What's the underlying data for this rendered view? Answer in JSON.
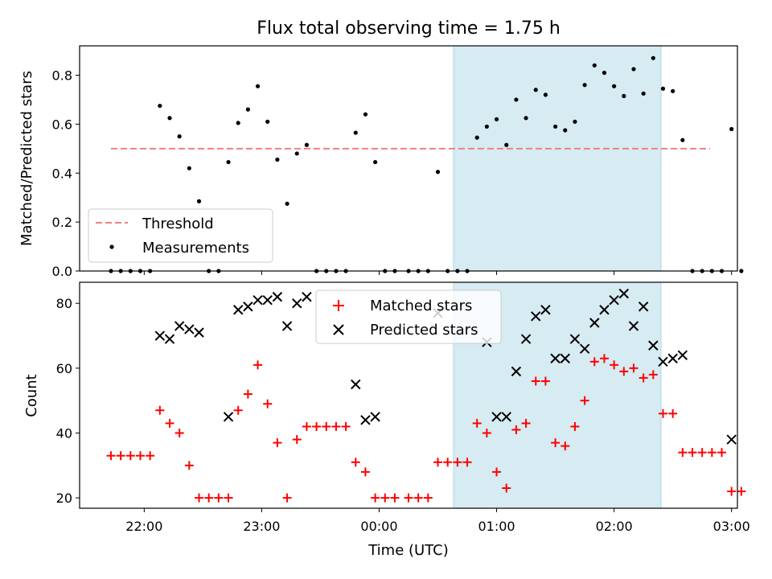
{
  "chart_data": [
    {
      "type": "scatter",
      "title": "Flux total observing time = 1.75 h",
      "ylabel": "Matched/Predicted stars",
      "xlabel": "",
      "x_unit": "UTC time (HH:MM)",
      "xlim": [
        "21:27",
        "03:03"
      ],
      "ylim": [
        0,
        0.92
      ],
      "yticks": [
        0.0,
        0.2,
        0.4,
        0.6,
        0.8
      ],
      "yticklabels": [
        "0.0",
        "0.2",
        "0.4",
        "0.6",
        "0.8"
      ],
      "shaded_interval": [
        "00:38",
        "02:24"
      ],
      "legend_position": "lower-left",
      "series": [
        {
          "name": "Threshold",
          "style": "dashed-line",
          "color": "#f08080",
          "points": [
            [
              "21:43",
              0.5
            ],
            [
              "02:49",
              0.5
            ]
          ]
        },
        {
          "name": "Measurements",
          "style": "dot",
          "color": "#000000",
          "points": [
            [
              "21:43",
              0
            ],
            [
              "21:48",
              0
            ],
            [
              "21:53",
              0
            ],
            [
              "21:58",
              0
            ],
            [
              "22:03",
              0
            ],
            [
              "22:08",
              0.675
            ],
            [
              "22:13",
              0.625
            ],
            [
              "22:18",
              0.55
            ],
            [
              "22:23",
              0.42
            ],
            [
              "22:28",
              0.285
            ],
            [
              "22:33",
              0
            ],
            [
              "22:38",
              0
            ],
            [
              "22:43",
              0.445
            ],
            [
              "22:48",
              0.605
            ],
            [
              "22:53",
              0.66
            ],
            [
              "22:58",
              0.755
            ],
            [
              "23:03",
              0.61
            ],
            [
              "23:08",
              0.455
            ],
            [
              "23:13",
              0.275
            ],
            [
              "23:18",
              0.48
            ],
            [
              "23:23",
              0.515
            ],
            [
              "23:28",
              0
            ],
            [
              "23:33",
              0
            ],
            [
              "23:38",
              0
            ],
            [
              "23:43",
              0
            ],
            [
              "23:48",
              0.565
            ],
            [
              "23:53",
              0.64
            ],
            [
              "23:58",
              0.445
            ],
            [
              "00:03",
              0
            ],
            [
              "00:08",
              0
            ],
            [
              "00:15",
              0
            ],
            [
              "00:20",
              0
            ],
            [
              "00:25",
              0
            ],
            [
              "00:30",
              0.405
            ],
            [
              "00:35",
              0
            ],
            [
              "00:40",
              0
            ],
            [
              "00:45",
              0
            ],
            [
              "00:50",
              0.545
            ],
            [
              "00:55",
              0.59
            ],
            [
              "01:00",
              0.62
            ],
            [
              "01:05",
              0.515
            ],
            [
              "01:10",
              0.7
            ],
            [
              "01:15",
              0.625
            ],
            [
              "01:20",
              0.74
            ],
            [
              "01:25",
              0.72
            ],
            [
              "01:30",
              0.59
            ],
            [
              "01:35",
              0.575
            ],
            [
              "01:40",
              0.61
            ],
            [
              "01:45",
              0.76
            ],
            [
              "01:50",
              0.84
            ],
            [
              "01:55",
              0.81
            ],
            [
              "02:00",
              0.755
            ],
            [
              "02:05",
              0.715
            ],
            [
              "02:10",
              0.825
            ],
            [
              "02:15",
              0.725
            ],
            [
              "02:20",
              0.87
            ],
            [
              "02:25",
              0.745
            ],
            [
              "02:30",
              0.735
            ],
            [
              "02:35",
              0.535
            ],
            [
              "02:40",
              0
            ],
            [
              "02:45",
              0
            ],
            [
              "02:50",
              0
            ],
            [
              "02:55",
              0
            ],
            [
              "03:00",
              0.58
            ],
            [
              "03:05",
              0
            ]
          ]
        }
      ]
    },
    {
      "type": "scatter",
      "title": "",
      "ylabel": "Count",
      "xlabel": "Time (UTC)",
      "xlim": [
        "21:27",
        "03:03"
      ],
      "ylim": [
        16.8,
        86.5
      ],
      "yticks": [
        20,
        40,
        60,
        80
      ],
      "yticklabels": [
        "20",
        "40",
        "60",
        "80"
      ],
      "xticks": [
        "22:00",
        "23:00",
        "00:00",
        "01:00",
        "02:00",
        "03:00"
      ],
      "shaded_interval": [
        "00:38",
        "02:24"
      ],
      "legend_position": "upper-center",
      "series": [
        {
          "name": "Matched stars",
          "marker": "plus",
          "color": "#ff0000",
          "points": [
            [
              "21:43",
              33
            ],
            [
              "21:48",
              33
            ],
            [
              "21:53",
              33
            ],
            [
              "21:58",
              33
            ],
            [
              "22:03",
              33
            ],
            [
              "22:08",
              47
            ],
            [
              "22:13",
              43
            ],
            [
              "22:18",
              40
            ],
            [
              "22:23",
              30
            ],
            [
              "22:28",
              20
            ],
            [
              "22:33",
              20
            ],
            [
              "22:38",
              20
            ],
            [
              "22:43",
              20
            ],
            [
              "22:48",
              47
            ],
            [
              "22:53",
              52
            ],
            [
              "22:58",
              61
            ],
            [
              "23:03",
              49
            ],
            [
              "23:08",
              37
            ],
            [
              "23:13",
              20
            ],
            [
              "23:18",
              38
            ],
            [
              "23:23",
              42
            ],
            [
              "23:28",
              42
            ],
            [
              "23:33",
              42
            ],
            [
              "23:38",
              42
            ],
            [
              "23:43",
              42
            ],
            [
              "23:48",
              31
            ],
            [
              "23:53",
              28
            ],
            [
              "23:58",
              20
            ],
            [
              "00:03",
              20
            ],
            [
              "00:08",
              20
            ],
            [
              "00:15",
              20
            ],
            [
              "00:20",
              20
            ],
            [
              "00:25",
              20
            ],
            [
              "00:30",
              31
            ],
            [
              "00:35",
              31
            ],
            [
              "00:40",
              31
            ],
            [
              "00:45",
              31
            ],
            [
              "00:50",
              43
            ],
            [
              "00:55",
              40
            ],
            [
              "01:00",
              28
            ],
            [
              "01:05",
              23
            ],
            [
              "01:10",
              41
            ],
            [
              "01:15",
              43
            ],
            [
              "01:20",
              56
            ],
            [
              "01:25",
              56
            ],
            [
              "01:30",
              37
            ],
            [
              "01:35",
              36
            ],
            [
              "01:40",
              42
            ],
            [
              "01:45",
              50
            ],
            [
              "01:50",
              62
            ],
            [
              "01:55",
              63
            ],
            [
              "02:00",
              61
            ],
            [
              "02:05",
              59
            ],
            [
              "02:10",
              60
            ],
            [
              "02:15",
              57
            ],
            [
              "02:20",
              58
            ],
            [
              "02:25",
              46
            ],
            [
              "02:30",
              46
            ],
            [
              "02:35",
              34
            ],
            [
              "02:40",
              34
            ],
            [
              "02:45",
              34
            ],
            [
              "02:50",
              34
            ],
            [
              "02:55",
              34
            ],
            [
              "03:00",
              22
            ],
            [
              "03:05",
              22
            ]
          ]
        },
        {
          "name": "Predicted stars",
          "marker": "x",
          "color": "#000000",
          "points": [
            [
              "22:08",
              70
            ],
            [
              "22:13",
              69
            ],
            [
              "22:18",
              73
            ],
            [
              "22:23",
              72
            ],
            [
              "22:28",
              71
            ],
            [
              "22:43",
              45
            ],
            [
              "22:48",
              78
            ],
            [
              "22:53",
              79
            ],
            [
              "22:58",
              81
            ],
            [
              "23:03",
              81
            ],
            [
              "23:08",
              82
            ],
            [
              "23:13",
              73
            ],
            [
              "23:18",
              80
            ],
            [
              "23:23",
              82
            ],
            [
              "23:48",
              55
            ],
            [
              "23:53",
              44
            ],
            [
              "23:58",
              45
            ],
            [
              "00:30",
              77
            ],
            [
              "00:55",
              68
            ],
            [
              "01:00",
              45
            ],
            [
              "01:05",
              45
            ],
            [
              "01:10",
              59
            ],
            [
              "01:15",
              69
            ],
            [
              "01:20",
              76
            ],
            [
              "01:25",
              78
            ],
            [
              "01:30",
              63
            ],
            [
              "01:35",
              63
            ],
            [
              "01:40",
              69
            ],
            [
              "01:45",
              66
            ],
            [
              "01:50",
              74
            ],
            [
              "01:55",
              78
            ],
            [
              "02:00",
              81
            ],
            [
              "02:05",
              83
            ],
            [
              "02:10",
              73
            ],
            [
              "02:15",
              79
            ],
            [
              "02:20",
              67
            ],
            [
              "02:25",
              62
            ],
            [
              "02:30",
              63
            ],
            [
              "02:35",
              64
            ],
            [
              "03:00",
              38
            ]
          ]
        }
      ]
    }
  ],
  "colors": {
    "shade": "#add8e6",
    "threshold": "#f08080",
    "matched": "#ff0000",
    "predicted": "#000000"
  }
}
